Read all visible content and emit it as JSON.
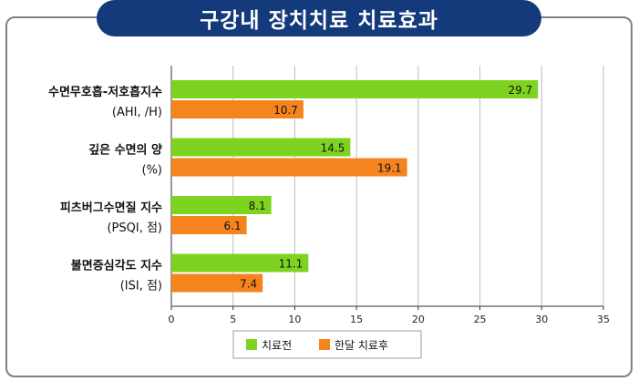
{
  "chart_data": {
    "type": "bar",
    "orientation": "horizontal",
    "title": "구강내 장치치료 치료효과",
    "categories": [
      {
        "line1": "수면무호흡-저호흡지수",
        "line2": "(AHI, /H)"
      },
      {
        "line1": "깊은 수면의 양",
        "line2": "(%)"
      },
      {
        "line1": "피츠버그수면질 지수",
        "line2": "(PSQI, 점)"
      },
      {
        "line1": "불면증심각도 지수",
        "line2": "(ISI, 점)"
      }
    ],
    "series": [
      {
        "name": "치료전",
        "color": "#7ed321",
        "values": [
          29.7,
          14.5,
          8.1,
          11.1
        ]
      },
      {
        "name": "한달 치료후",
        "color": "#f5841f",
        "values": [
          10.7,
          19.1,
          6.1,
          7.4
        ]
      }
    ],
    "xlim": [
      0,
      35
    ],
    "xticks": [
      0,
      5,
      10,
      15,
      20,
      25,
      30,
      35
    ],
    "grid": true,
    "legend_position": "bottom"
  }
}
